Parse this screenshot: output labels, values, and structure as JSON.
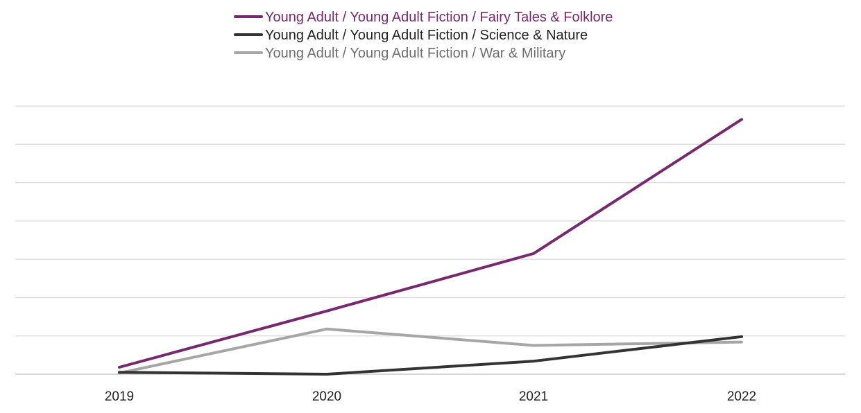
{
  "chart_data": {
    "type": "line",
    "title": "",
    "xlabel": "",
    "ylabel": "",
    "categories": [
      "2019",
      "2020",
      "2021",
      "2022"
    ],
    "ylim": [
      0,
      7
    ],
    "y_ticks_labeled": false,
    "grid": true,
    "legend_position": "top",
    "series": [
      {
        "name": "Young Adult / Young Adult Fiction / Fairy Tales & Folklore",
        "color": "#76296f",
        "values": [
          0.18,
          1.65,
          3.15,
          6.65
        ]
      },
      {
        "name": "Young Adult / Young Adult Fiction / Science & Nature",
        "color": "#333333",
        "values": [
          0.05,
          0.0,
          0.34,
          0.98
        ]
      },
      {
        "name": "Young Adult / Young Adult Fiction / War & Military",
        "color": "#a6a6a6",
        "values": [
          0.03,
          1.18,
          0.75,
          0.84
        ]
      }
    ]
  }
}
